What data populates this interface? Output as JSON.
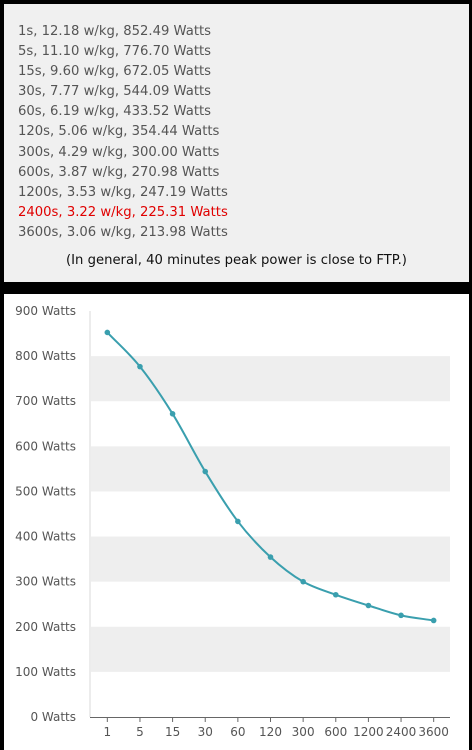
{
  "stats": [
    {
      "text": "1s, 12.18 w/kg, 852.49 Watts",
      "highlight": false
    },
    {
      "text": "5s, 11.10 w/kg, 776.70 Watts",
      "highlight": false
    },
    {
      "text": "15s, 9.60 w/kg, 672.05 Watts",
      "highlight": false
    },
    {
      "text": "30s, 7.77 w/kg, 544.09 Watts",
      "highlight": false
    },
    {
      "text": "60s, 6.19 w/kg, 433.52 Watts",
      "highlight": false
    },
    {
      "text": "120s, 5.06 w/kg, 354.44 Watts",
      "highlight": false
    },
    {
      "text": "300s, 4.29 w/kg, 300.00 Watts",
      "highlight": false
    },
    {
      "text": "600s, 3.87 w/kg, 270.98 Watts",
      "highlight": false
    },
    {
      "text": "1200s, 3.53 w/kg, 247.19 Watts",
      "highlight": false
    },
    {
      "text": "2400s, 3.22 w/kg, 225.31 Watts",
      "highlight": true
    },
    {
      "text": "3600s, 3.06 w/kg, 213.98 Watts",
      "highlight": false
    }
  ],
  "note": "(In general, 40 minutes peak power is close to FTP.)",
  "colors": {
    "highlight": "#e00000",
    "line": "#3a9fae",
    "band": "#eeeeee",
    "panel_background": "#f0f0f0",
    "frame": "#000000"
  },
  "chart_data": {
    "type": "line",
    "categories": [
      "1",
      "5",
      "15",
      "30",
      "60",
      "120",
      "300",
      "600",
      "1200",
      "2400",
      "3600"
    ],
    "series": [
      {
        "values": [
          852.49,
          776.7,
          672.05,
          544.09,
          433.52,
          354.44,
          300.0,
          270.98,
          247.19,
          225.31,
          213.98
        ]
      }
    ],
    "y_ticks": [
      0,
      100,
      200,
      300,
      400,
      500,
      600,
      700,
      800,
      900
    ],
    "y_tick_labels": [
      "0 Watts",
      "100 Watts",
      "200 Watts",
      "300 Watts",
      "400 Watts",
      "500 Watts",
      "600 Watts",
      "700 Watts",
      "800 Watts",
      "900 Watts"
    ],
    "ylim": [
      0,
      900
    ],
    "title": "",
    "xlabel": "",
    "ylabel": "",
    "grid": "alternating horizontal bands",
    "legend": "none"
  }
}
